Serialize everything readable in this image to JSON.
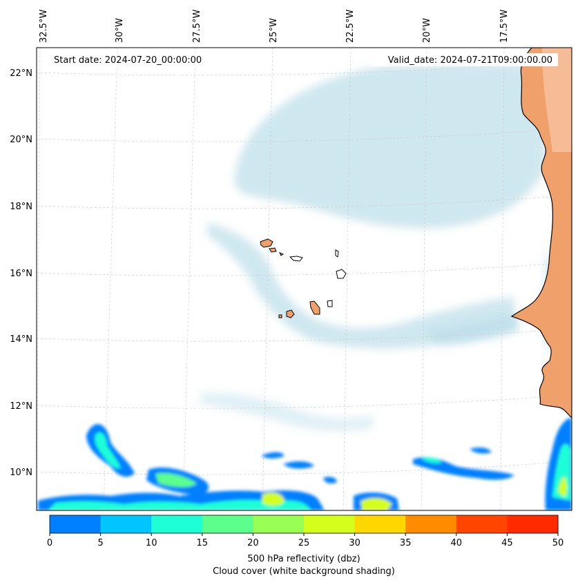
{
  "map": {
    "top_lon_labels": [
      "32.5°W",
      "30°W",
      "27.5°W",
      "25°W",
      "22.5°W",
      "20°W",
      "17.5°W"
    ],
    "left_lat_labels": [
      "22°N",
      "20°N",
      "18°N",
      "16°N",
      "14°N",
      "12°N",
      "10°N"
    ],
    "start_date": "Start date: 2024-07-20_00:00:00",
    "valid_date": "Valid_date: 2024-07-21T09:00:00.00",
    "land_color": "#f0a06a",
    "coastline_color": "#000000",
    "cloud_color": "#a9d4e2"
  },
  "colorbar": {
    "ticks": [
      "0",
      "5",
      "10",
      "15",
      "20",
      "25",
      "30",
      "35",
      "40",
      "45",
      "50"
    ],
    "colors": [
      "#0080ff",
      "#00c5ff",
      "#1fffd6",
      "#5cff8c",
      "#99ff55",
      "#d4ff1d",
      "#ffd700",
      "#ff8c00",
      "#ff4500",
      "#ff2a00"
    ],
    "label_line1": "500 hPa reflectivity (dbz)",
    "label_line2": "Cloud cover (white background shading)"
  }
}
